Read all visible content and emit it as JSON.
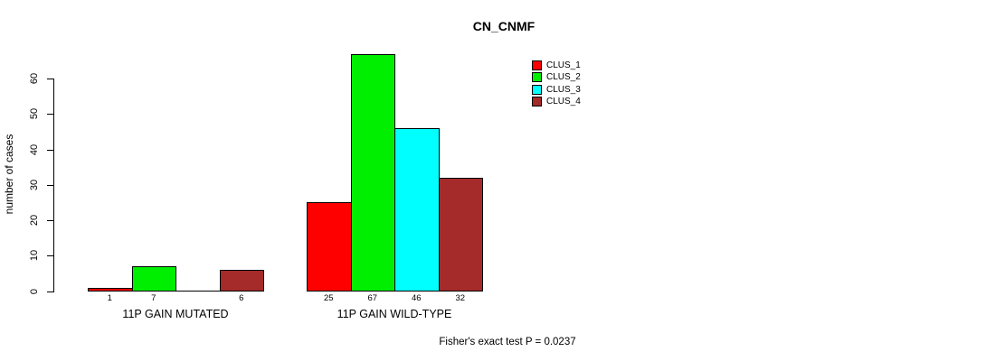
{
  "title": "CN_CNMF",
  "footer": "Fisher's exact test P = 0.0237",
  "chart_data": {
    "type": "bar",
    "title": "CN_CNMF",
    "ylabel": "number of cases",
    "xlabel": "",
    "categories": [
      "11P GAIN MUTATED",
      "11P GAIN WILD-TYPE"
    ],
    "series": [
      {
        "name": "CLUS_1",
        "color": "#FF0000",
        "values": [
          1,
          25
        ]
      },
      {
        "name": "CLUS_2",
        "color": "#00EE00",
        "values": [
          7,
          67
        ]
      },
      {
        "name": "CLUS_3",
        "color": "#00FFFF",
        "values": [
          0,
          46
        ]
      },
      {
        "name": "CLUS_4",
        "color": "#A52A2A",
        "values": [
          6,
          32
        ]
      }
    ],
    "bar_value_labels": {
      "shown": true,
      "note": "zero-value bars have no label and no visible bar"
    },
    "yticks": [
      0,
      10,
      20,
      30,
      40,
      50,
      60
    ],
    "ylim": [
      0,
      67
    ],
    "grid": false,
    "legend_position": "top-right",
    "annotation": "Fisher's exact test P = 0.0237"
  }
}
